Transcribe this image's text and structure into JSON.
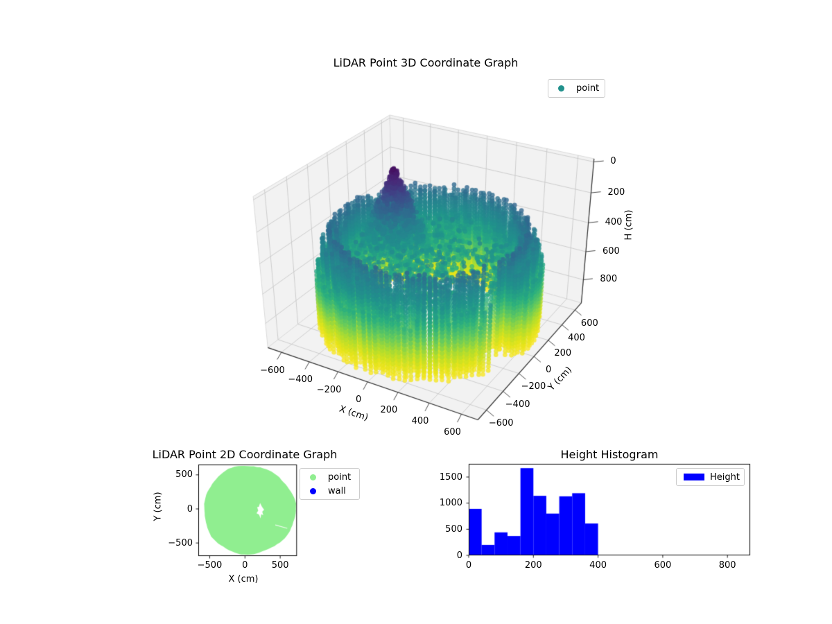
{
  "figure": {
    "background": "#ffffff"
  },
  "chart_data": [
    {
      "id": "lidar-3d",
      "type": "scatter",
      "projection": "3d",
      "title": "LiDAR Point 3D Coordinate Graph",
      "xlabel": "X (cm)",
      "ylabel": "Y (cm)",
      "zlabel": "H (cm)",
      "xlim": [
        -700,
        700
      ],
      "ylim": [
        -700,
        700
      ],
      "zlim": [
        -20,
        970
      ],
      "z_axis_inverted": true,
      "xticks": [
        -600,
        -400,
        -200,
        0,
        200,
        400,
        600
      ],
      "yticks": [
        -600,
        -400,
        -200,
        0,
        200,
        400,
        600
      ],
      "zticks": [
        0,
        200,
        400,
        600,
        800
      ],
      "grid": true,
      "colormap": "viridis",
      "view": {
        "elev": 30,
        "azim": -60
      },
      "legend": {
        "position": "upper right",
        "items": [
          {
            "label": "point",
            "color": "#21918c",
            "marker": "circle"
          }
        ]
      },
      "point_cloud": {
        "description": "Donut-shaped LiDAR return ring with scattered interior floor points and a tall central peak; points colored by height H with viridis (purple = low H near 0, yellow = high H near 950).",
        "seed": 42,
        "color_h_range": [
          0,
          950
        ],
        "ring": {
          "radii": [
            660,
            620,
            575,
            530,
            485
          ],
          "angle_steps": 120,
          "crest_radius": 570,
          "crest_h": 300,
          "slope": 200,
          "bottom_h": 935,
          "step_h": 26,
          "gap_angle": [
            -0.55,
            -0.25
          ]
        },
        "floor": {
          "count": 2600,
          "max_r": 470,
          "h_mean": 560,
          "h_spread": 130,
          "keep": 0.62,
          "holes": [
            [
              250,
              30,
              130
            ],
            [
              420,
              -160,
              100
            ],
            [
              -80,
              -320,
              90
            ],
            [
              -250,
              -120,
              70
            ],
            [
              150,
              330,
              90
            ]
          ]
        },
        "peak": {
          "center": [
            -300,
            100
          ],
          "h_top": 40,
          "h_base": 570,
          "growth": 0.42,
          "level_step": 14,
          "density": 0.22
        },
        "noise_points": {
          "count": 60,
          "max_r": 560,
          "h_min": 390,
          "h_max": 520
        }
      }
    },
    {
      "id": "lidar-2d",
      "type": "scatter",
      "title": "LiDAR Point 2D Coordinate Graph",
      "xlabel": "X (cm)",
      "ylabel": "Y (cm)",
      "xlim": [
        -660,
        740
      ],
      "ylim": [
        -692,
        651
      ],
      "xticks": [
        -500,
        0,
        500
      ],
      "yticks": [
        -500,
        0,
        500
      ],
      "legend": {
        "position": "upper right",
        "items": [
          {
            "label": "point",
            "color": "#90ee90",
            "marker": "circle"
          },
          {
            "label": "wall",
            "color": "#0000ff",
            "marker": "circle"
          }
        ]
      },
      "point_region": {
        "description": "Dense light-green disc of LiDAR points seen from above, clipped by the axes; small irregular white hole right of center.",
        "shape": "disc",
        "center": [
          60,
          -15
        ],
        "radius": 650,
        "color": "#90ee90",
        "hole": {
          "center": [
            215,
            -30
          ],
          "rx": 60,
          "ry": 110
        },
        "streak": {
          "from": [
            430,
            -235
          ],
          "to": [
            600,
            -285
          ]
        }
      }
    },
    {
      "id": "height-histogram",
      "type": "bar",
      "title": "Height Histogram",
      "xlabel": "",
      "ylabel": "",
      "xlim": [
        0,
        870
      ],
      "ylim": [
        0,
        1752
      ],
      "xticks": [
        0,
        200,
        400,
        600,
        800
      ],
      "yticks": [
        0,
        500,
        1000,
        1500
      ],
      "bar_color": "#0000ff",
      "legend": {
        "position": "upper right",
        "items": [
          {
            "label": "Height",
            "color": "#0000ff",
            "marker": "rect"
          }
        ]
      },
      "bin_edges": [
        0,
        40,
        80,
        120,
        160,
        200,
        240,
        280,
        320,
        360,
        400
      ],
      "values": [
        890,
        200,
        440,
        370,
        1670,
        1140,
        800,
        1130,
        1190,
        610
      ]
    }
  ]
}
